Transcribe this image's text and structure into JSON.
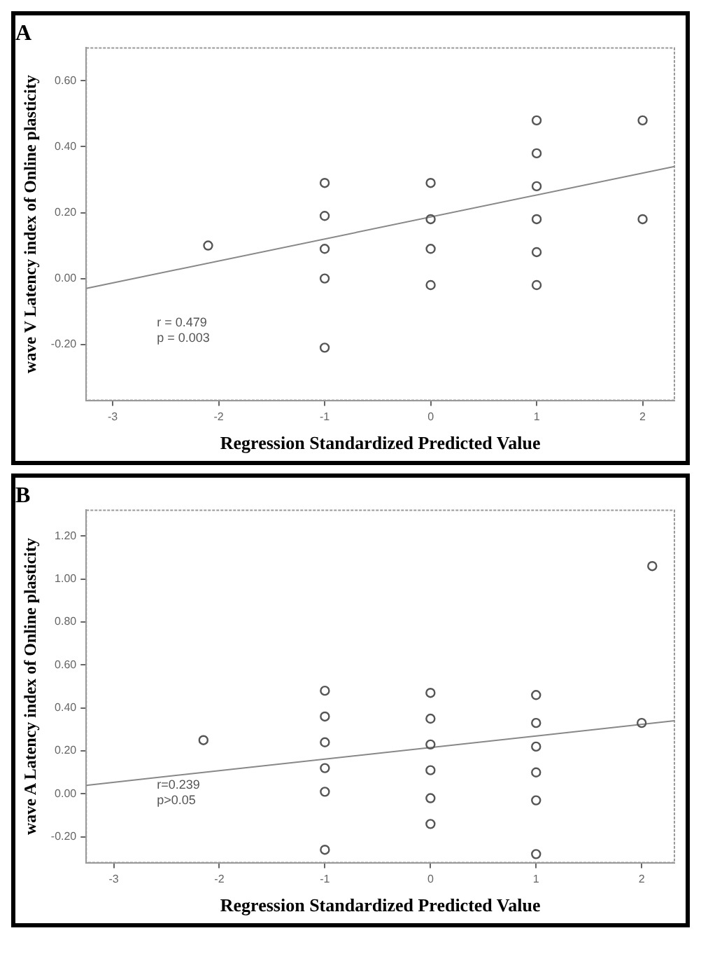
{
  "chart_data": [
    {
      "type": "scatter",
      "title": "A",
      "xlabel": "Regression Standardized Predicted Value",
      "ylabel": "wave V Latency index of Online plasticity",
      "xlim": [
        -3.25,
        2.3
      ],
      "xticks": [
        -3,
        -2,
        -1,
        0,
        1,
        2
      ],
      "ylim": [
        -0.37,
        0.7
      ],
      "yticks": [
        {
          "value": -0.2,
          "label": "-0.20"
        },
        {
          "value": 0,
          "label": "0.00"
        },
        {
          "value": 0.2,
          "label": "0.20"
        },
        {
          "value": 0.4,
          "label": "0.40"
        },
        {
          "value": 0.6,
          "label": "0.60"
        }
      ],
      "grid": false,
      "legend": false,
      "series": [
        {
          "marker": "circle",
          "color": "#555555",
          "x": [
            1,
            2,
            1,
            -1,
            0,
            1,
            -1,
            0,
            1,
            2,
            -2.1,
            -1,
            0,
            1,
            -1,
            0,
            1,
            -1
          ],
          "values": [
            0.48,
            0.48,
            0.38,
            0.29,
            0.29,
            0.28,
            0.19,
            0.18,
            0.18,
            0.18,
            0.1,
            0.09,
            0.09,
            0.08,
            0.0,
            -0.02,
            -0.02,
            -0.21
          ]
        },
        {
          "type": "line",
          "marker": "none",
          "color": "#888888",
          "x": [
            -3.25,
            2.3
          ],
          "values": [
            -0.03,
            0.34
          ]
        }
      ],
      "annotations": [
        "r = 0.479",
        "p = 0.003"
      ]
    },
    {
      "type": "scatter",
      "title": "B",
      "xlabel": "Regression Standardized Predicted Value",
      "ylabel": "wave A Latency index of Online plasticity",
      "xlim": [
        -3.26,
        2.31
      ],
      "xticks": [
        -3,
        -2,
        -1,
        0,
        1,
        2
      ],
      "ylim": [
        -0.32,
        1.32
      ],
      "yticks": [
        {
          "value": -0.2,
          "label": "-0.20"
        },
        {
          "value": 0,
          "label": "0.00"
        },
        {
          "value": 0.2,
          "label": "0.20"
        },
        {
          "value": 0.4,
          "label": "0.40"
        },
        {
          "value": 0.6,
          "label": "0.60"
        },
        {
          "value": 0.8,
          "label": "0.80"
        },
        {
          "value": 1.0,
          "label": "1.00"
        },
        {
          "value": 1.2,
          "label": "1.20"
        }
      ],
      "grid": false,
      "legend": false,
      "series": [
        {
          "marker": "circle",
          "color": "#555555",
          "x": [
            2.1,
            -1,
            0,
            1,
            -1,
            0,
            1,
            2,
            -2.15,
            -1,
            0,
            1,
            -1,
            0,
            1,
            -1,
            0,
            1,
            0,
            -1,
            1
          ],
          "values": [
            1.06,
            0.48,
            0.47,
            0.46,
            0.36,
            0.35,
            0.33,
            0.33,
            0.25,
            0.24,
            0.23,
            0.22,
            0.12,
            0.11,
            0.1,
            0.01,
            -0.02,
            -0.03,
            -0.14,
            -0.26,
            -0.28
          ]
        },
        {
          "type": "line",
          "marker": "none",
          "color": "#888888",
          "x": [
            -3.26,
            2.31
          ],
          "values": [
            0.04,
            0.34
          ]
        }
      ],
      "annotations": [
        "r=0.239",
        "p>0.05"
      ]
    }
  ]
}
